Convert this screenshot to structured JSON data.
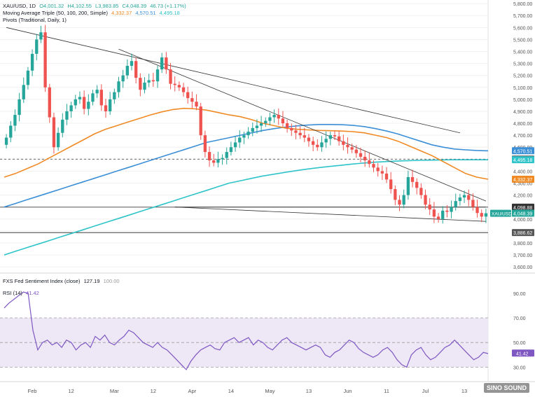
{
  "header": {
    "symbol": "XAU/USD, 1D",
    "open": "O4,001.32",
    "high": "H4,102.55",
    "low": "L3,983.85",
    "close": "C4,048.39",
    "change": "46.73 (+1.17%)",
    "ma_label": "Moving Average Triple (50, 100, 200, Simple)",
    "ma50_val": "4,332.37",
    "ma100_val": "4,570.51",
    "ma200_val": "4,495.18",
    "pivots_label": "Pivots (Traditional, Daily, 1)",
    "sentiment_label": "FXS Fed Sentiment Index (close)",
    "sentiment_val": "127.19",
    "sentiment_ref": "100.00",
    "rsi_label": "RSI (14)",
    "rsi_val": "41.42"
  },
  "watermark": "SINO SOUND",
  "colors": {
    "up": "#26a69a",
    "down": "#ef5350",
    "ma50": "#f08a24",
    "ma100": "#3b8fd6",
    "ma200": "#2ec4c9",
    "trend": "#333333",
    "rsi": "#7e57c2",
    "rsi_band": "#ede7f6"
  },
  "chart_data": [
    {
      "type": "candlestick",
      "title": "XAU/USD, 1D",
      "x_tick_labels": [
        "Feb",
        "12",
        "Mar",
        "12",
        "Apr",
        "14",
        "May",
        "13",
        "Jun",
        "11",
        "Jul",
        "13"
      ],
      "y_ticks": [
        3600,
        3700,
        3800,
        3900,
        4000,
        4100,
        4200,
        4300,
        4400,
        4500,
        4600,
        4700,
        4800,
        4900,
        5000,
        5100,
        5200,
        5300,
        5400,
        5500,
        5600,
        5700,
        5800
      ],
      "ylim": [
        3560,
        5830
      ],
      "price_labels": [
        {
          "text": "4,570.51",
          "value": 4570.51,
          "color": "#3b8fd6"
        },
        {
          "text": "4,500.00",
          "value": 4500.0,
          "color": "#333333"
        },
        {
          "text": "4,495.18",
          "value": 4495.18,
          "color": "#2ec4c9"
        },
        {
          "text": "4,332.37",
          "value": 4332.37,
          "color": "#f08a24"
        },
        {
          "text": "4,098.88",
          "value": 4098.88,
          "color": "#333333"
        },
        {
          "text": "4,048.39",
          "value": 4048.39,
          "color": "#26a69a"
        },
        {
          "text": "3,886.62",
          "value": 3886.62,
          "color": "#555555"
        }
      ],
      "price_tag": "XAU/USD",
      "horizontal_lines": [
        4500.0,
        4098.88,
        3886.62
      ],
      "close": [
        4680,
        4780,
        4870,
        5000,
        5120,
        5240,
        5380,
        5500,
        5560,
        5100,
        4850,
        4600,
        4720,
        4830,
        4900,
        4950,
        5000,
        5020,
        4920,
        4980,
        5050,
        5080,
        4950,
        4900,
        5000,
        5060,
        5150,
        5200,
        5280,
        5320,
        5180,
        5080,
        5140,
        5160,
        5150,
        5250,
        5350,
        5250,
        5130,
        5120,
        5100,
        5060,
        5010,
        4980,
        4940,
        4700,
        4560,
        4490,
        4470,
        4500,
        4510,
        4560,
        4600,
        4640,
        4680,
        4700,
        4730,
        4760,
        4780,
        4800,
        4820,
        4850,
        4870,
        4840,
        4800,
        4760,
        4740,
        4720,
        4700,
        4680,
        4650,
        4620,
        4600,
        4640,
        4670,
        4700,
        4690,
        4650,
        4620,
        4600,
        4580,
        4550,
        4520,
        4490,
        4460,
        4430,
        4400,
        4380,
        4330,
        4250,
        4160,
        4120,
        4200,
        4350,
        4310,
        4260,
        4200,
        4120,
        4080,
        4020,
        4000,
        4070,
        4060,
        4100,
        4150,
        4180,
        4200,
        4160,
        4100,
        4050,
        4020,
        4048
      ],
      "series": [
        {
          "name": "MA 50",
          "values": [
            4350,
            4380,
            4420,
            4460,
            4510,
            4560,
            4610,
            4660,
            4710,
            4750,
            4780,
            4810,
            4840,
            4870,
            4895,
            4915,
            4925,
            4920,
            4910,
            4890,
            4870,
            4855,
            4830,
            4800,
            4780,
            4760,
            4750,
            4745,
            4740,
            4738,
            4735,
            4730,
            4720,
            4700,
            4680,
            4650,
            4610,
            4570,
            4530,
            4480,
            4430,
            4380,
            4350,
            4332
          ]
        },
        {
          "name": "MA 100",
          "values": [
            4100,
            4130,
            4160,
            4190,
            4220,
            4250,
            4280,
            4310,
            4340,
            4370,
            4400,
            4430,
            4460,
            4490,
            4520,
            4550,
            4580,
            4610,
            4640,
            4660,
            4680,
            4700,
            4720,
            4740,
            4755,
            4768,
            4778,
            4785,
            4790,
            4790,
            4788,
            4782,
            4772,
            4755,
            4735,
            4710,
            4680,
            4650,
            4620,
            4600,
            4585,
            4578,
            4573,
            4570
          ]
        },
        {
          "name": "MA 200",
          "values": [
            3700,
            3730,
            3760,
            3790,
            3820,
            3850,
            3880,
            3910,
            3940,
            3970,
            4000,
            4030,
            4060,
            4090,
            4120,
            4150,
            4180,
            4210,
            4240,
            4270,
            4300,
            4320,
            4340,
            4360,
            4375,
            4390,
            4405,
            4418,
            4430,
            4440,
            4450,
            4460,
            4468,
            4475,
            4480,
            4485,
            4488,
            4490,
            4492,
            4494,
            4495,
            4495,
            4495,
            4495
          ]
        },
        {
          "name": "RSI",
          "values": [
            78,
            82,
            85,
            88,
            91,
            90,
            60,
            44,
            50,
            52,
            48,
            50,
            46,
            52,
            50,
            44,
            48,
            50,
            46,
            55,
            52,
            56,
            50,
            48,
            52,
            55,
            60,
            58,
            54,
            50,
            48,
            46,
            50,
            46,
            44,
            40,
            36,
            32,
            28,
            35,
            40,
            44,
            46,
            48,
            45,
            44,
            50,
            52,
            54,
            50,
            52,
            54,
            48,
            52,
            50,
            46,
            44,
            48,
            52,
            54,
            50,
            48,
            46,
            44,
            46,
            48,
            46,
            40,
            38,
            42,
            44,
            48,
            52,
            50,
            45,
            42,
            40,
            38,
            40,
            44,
            46,
            42,
            36,
            32,
            30,
            40,
            44,
            46,
            40,
            36,
            38,
            42,
            46,
            48,
            52,
            48,
            44,
            40,
            36,
            38,
            42,
            41
          ]
        }
      ],
      "trendlines": [
        {
          "from": [
            0,
            5600
          ],
          "to": [
            105,
            4720
          ]
        },
        {
          "from": [
            26,
            5420
          ],
          "to": [
            111,
            4150
          ]
        },
        {
          "from": [
            39,
            4100
          ],
          "to": [
            111,
            3980
          ]
        },
        {
          "from": [
            39,
            4100
          ],
          "to": [
            111,
            4100
          ]
        }
      ]
    },
    {
      "type": "line",
      "title": "RSI (14)",
      "y_ticks": [
        30,
        40,
        50,
        60,
        70,
        80,
        90
      ],
      "y_tick_labels": [
        "30.00",
        "",
        "50.00",
        "",
        "70.00",
        "",
        "90.00"
      ],
      "ylim": [
        20,
        95
      ],
      "bands": [
        30,
        50,
        70
      ],
      "last": 41.42
    }
  ]
}
